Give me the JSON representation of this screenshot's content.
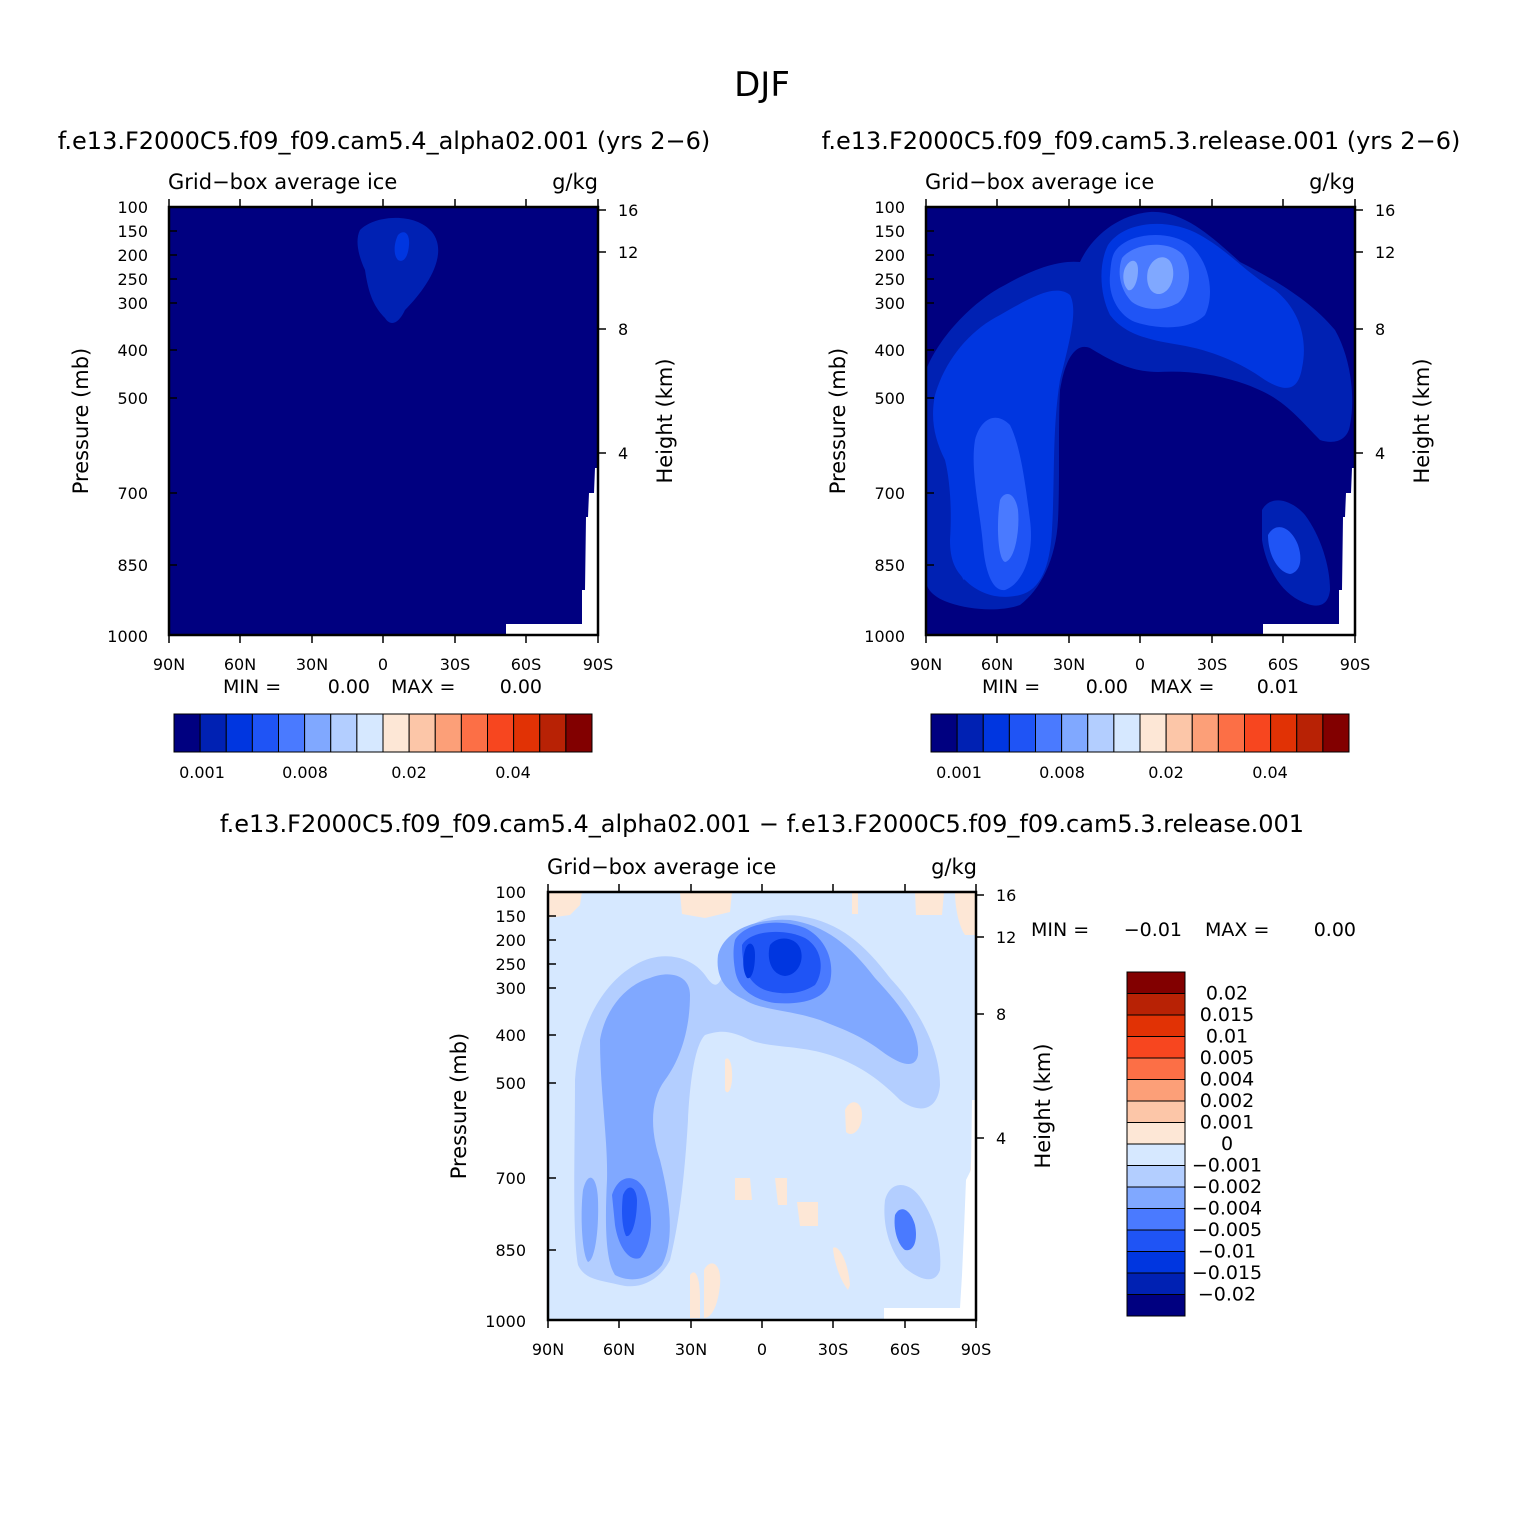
{
  "figure_title": "DJF",
  "colors": {
    "cb14": [
      "#000080",
      "#0021b3",
      "#0036e0",
      "#1f54f5",
      "#4a7aff",
      "#80a8ff",
      "#b3ceff",
      "#d6e8ff",
      "#fde7d6",
      "#fcc6a8",
      "#fc9f78",
      "#fc6f46",
      "#f7461f",
      "#e13205",
      "#b82205",
      "#820000"
    ],
    "missing": "#ffffff"
  },
  "chart_data": [
    {
      "type": "contour",
      "panel": "test",
      "title": "f.e13.F2000C5.f09_f09.cam5.4_alpha02.001 (yrs 2−6)",
      "variable": "Grid−box average ice",
      "units": "g/kg",
      "ylabel": "Pressure (mb)",
      "ylabel_right": "Height (km)",
      "x_ticks": [
        "90N",
        "60N",
        "30N",
        "0",
        "30S",
        "60S",
        "90S"
      ],
      "y_ticks": [
        "100",
        "150",
        "200",
        "250",
        "300",
        "400",
        "500",
        "700",
        "850",
        "1000"
      ],
      "y_right_ticks": [
        "16",
        "12",
        "8",
        "4"
      ],
      "xlim": [
        90,
        -90
      ],
      "ylim": [
        1000,
        100
      ],
      "min_label": "MIN =",
      "min_value": "0.00",
      "max_label": "MAX =",
      "max_value": "0.00",
      "colorbar_labels": [
        "0.001",
        "0.008",
        "0.02",
        "0.04"
      ],
      "features": [
        {
          "level": 1,
          "lat_range": [
            12,
            -25
          ],
          "p_range": [
            330,
            120
          ]
        },
        {
          "level": 2,
          "lat_range": [
            3,
            -2
          ],
          "p_range": [
            210,
            150
          ]
        }
      ]
    },
    {
      "type": "contour",
      "panel": "control",
      "title": "f.e13.F2000C5.f09_f09.cam5.3.release.001 (yrs 2−6)",
      "variable": "Grid−box average ice",
      "units": "g/kg",
      "ylabel": "Pressure (mb)",
      "ylabel_right": "Height (km)",
      "x_ticks": [
        "90N",
        "60N",
        "30N",
        "0",
        "30S",
        "60S",
        "90S"
      ],
      "y_ticks": [
        "100",
        "150",
        "200",
        "250",
        "300",
        "400",
        "500",
        "700",
        "850",
        "1000"
      ],
      "y_right_ticks": [
        "16",
        "12",
        "8",
        "4"
      ],
      "xlim": [
        90,
        -90
      ],
      "ylim": [
        1000,
        100
      ],
      "min_label": "MIN =",
      "min_value": "0.00",
      "max_label": "MAX =",
      "max_value": "0.01",
      "colorbar_labels": [
        "0.001",
        "0.008",
        "0.02",
        "0.04"
      ]
    },
    {
      "type": "contour",
      "panel": "difference",
      "title": "f.e13.F2000C5.f09_f09.cam5.4_alpha02.001 − f.e13.F2000C5.f09_f09.cam5.3.release.001",
      "variable": "Grid−box average ice",
      "units": "g/kg",
      "ylabel": "Pressure (mb)",
      "ylabel_right": "Height (km)",
      "x_ticks": [
        "90N",
        "60N",
        "30N",
        "0",
        "30S",
        "60S",
        "90S"
      ],
      "y_ticks": [
        "100",
        "150",
        "200",
        "250",
        "300",
        "400",
        "500",
        "700",
        "850",
        "1000"
      ],
      "y_right_ticks": [
        "16",
        "12",
        "8",
        "4"
      ],
      "xlim": [
        90,
        -90
      ],
      "ylim": [
        1000,
        100
      ],
      "min_label": "MIN =",
      "min_value": "−0.01",
      "max_label": "MAX =",
      "max_value": "0.00",
      "colorbar_labels": [
        "0.02",
        "0.015",
        "0.01",
        "0.005",
        "0.004",
        "0.002",
        "0.001",
        "0",
        "−0.001",
        "−0.002",
        "−0.004",
        "−0.005",
        "−0.01",
        "−0.015",
        "−0.02"
      ]
    }
  ]
}
